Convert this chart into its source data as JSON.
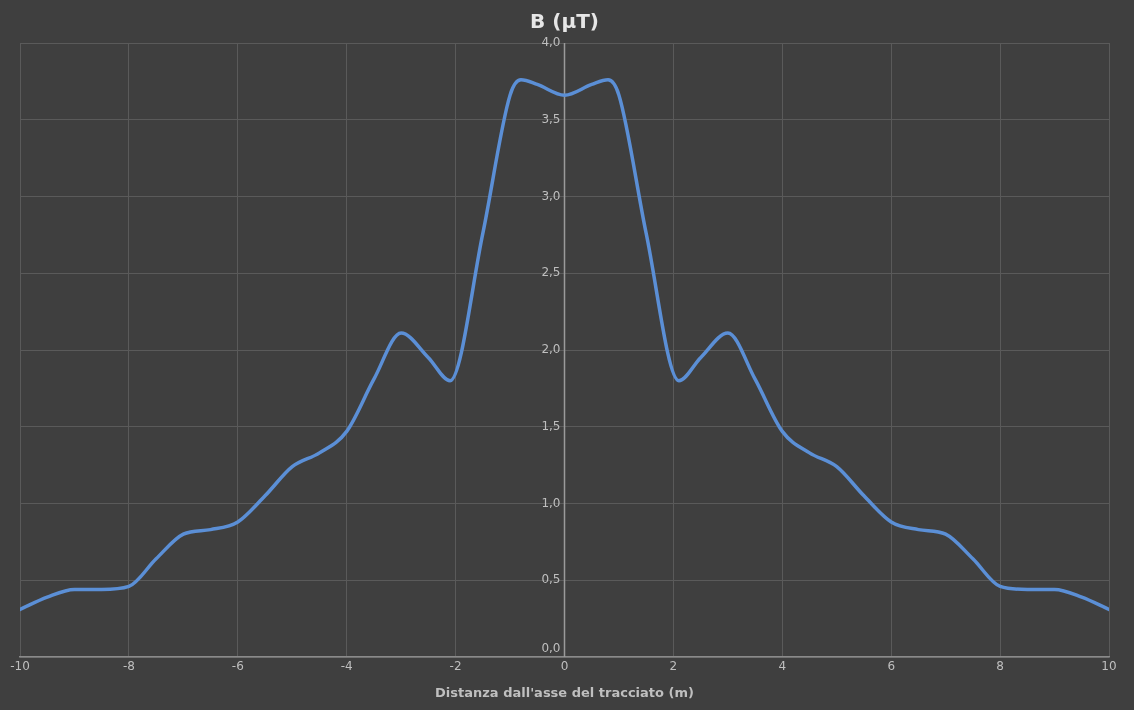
{
  "chart_data": {
    "type": "line",
    "title": "B (µT)",
    "xlabel": "Distanza dall'asse del tracciato (m)",
    "x": [
      -10,
      -9.5,
      -9,
      -8.5,
      -8,
      -7.5,
      -7,
      -6.5,
      -6,
      -5.5,
      -5,
      -4.5,
      -4,
      -3.5,
      -3,
      -2.5,
      -2.1,
      -1.5,
      -1,
      -0.8,
      -0.5,
      0,
      0.5,
      0.8,
      1,
      1.5,
      2.1,
      2.5,
      3,
      3.5,
      4,
      4.5,
      5,
      5.5,
      6,
      6.5,
      7,
      7.5,
      8,
      8.5,
      9,
      9.5,
      10
    ],
    "series": [
      {
        "color": "#5b8fd6",
        "values": [
          0.31,
          0.39,
          0.44,
          0.44,
          0.46,
          0.64,
          0.8,
          0.83,
          0.88,
          1.05,
          1.24,
          1.33,
          1.47,
          1.81,
          2.11,
          1.95,
          1.8,
          2.76,
          3.66,
          3.76,
          3.73,
          3.66,
          3.73,
          3.76,
          3.66,
          2.76,
          1.8,
          1.95,
          2.11,
          1.81,
          1.47,
          1.33,
          1.24,
          1.05,
          0.88,
          0.83,
          0.8,
          0.64,
          0.46,
          0.44,
          0.44,
          0.39,
          0.31
        ]
      }
    ],
    "xlim": [
      -10,
      10
    ],
    "xticks": [
      -10,
      -8,
      -6,
      -4,
      -2,
      0,
      2,
      4,
      6,
      8,
      10
    ],
    "ylim": [
      0,
      4
    ],
    "yticks": [
      {
        "value": 0,
        "label": "0,0"
      },
      {
        "value": 0.5,
        "label": "0,5"
      },
      {
        "value": 1,
        "label": "1,0"
      },
      {
        "value": 1.5,
        "label": "1,5"
      },
      {
        "value": 2,
        "label": "2,0"
      },
      {
        "value": 2.5,
        "label": "2,5"
      },
      {
        "value": 3,
        "label": "3,0"
      },
      {
        "value": 3.5,
        "label": "3,5"
      },
      {
        "value": 4,
        "label": "4,0"
      }
    ],
    "grid": true,
    "marker": "none",
    "line_style": "solid"
  }
}
